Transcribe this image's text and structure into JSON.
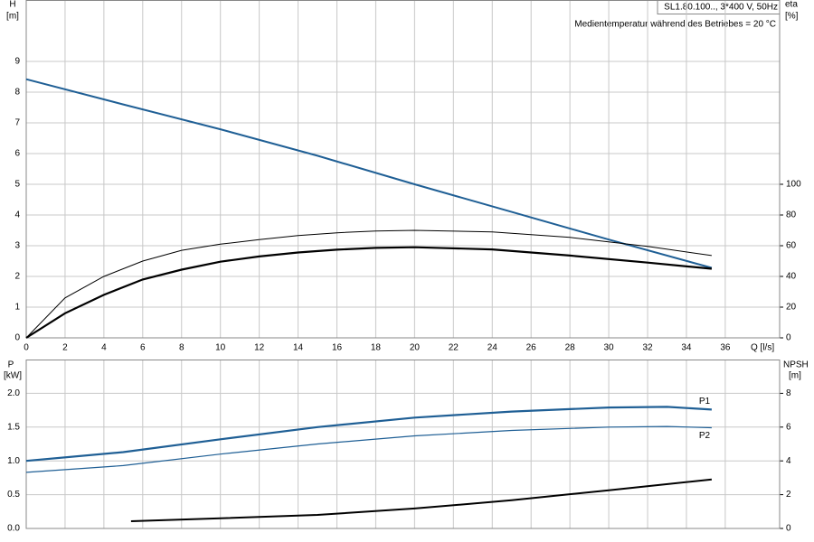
{
  "chart_data": [
    {
      "type": "line",
      "title": "SL1.80.100.., 3*400 V, 50Hz",
      "subtitle": "Medientemperatur während des Betriebes = 20 °C",
      "xlabel": "Q [l/s]",
      "ylabel": "H",
      "yunit": "[m]",
      "y2label": "eta",
      "y2unit": "[%]",
      "xlim": [
        0,
        38.8
      ],
      "xticks": [
        0,
        2,
        4,
        6,
        8,
        10,
        12,
        14,
        16,
        18,
        20,
        22,
        24,
        26,
        28,
        30,
        32,
        34,
        36
      ],
      "ylim": [
        0,
        11
      ],
      "yticks": [
        0,
        1,
        2,
        3,
        4,
        5,
        6,
        7,
        8,
        9
      ],
      "y2lim": [
        0,
        220
      ],
      "y2ticks": [
        0,
        20,
        40,
        60,
        80,
        100
      ],
      "grid": true,
      "series": [
        {
          "color": "#1f5f95",
          "axis": "y",
          "x": [
            0,
            5,
            10,
            15,
            20,
            25,
            30,
            35.3
          ],
          "values": [
            8.42,
            7.6,
            6.79,
            5.93,
            5.0,
            4.1,
            3.2,
            2.28
          ]
        },
        {
          "color": "#000000",
          "axis": "y2",
          "x": [
            0,
            2,
            4,
            6,
            8,
            10,
            12,
            14,
            16,
            18,
            20,
            24,
            28,
            32,
            35.3
          ],
          "values": [
            0,
            26,
            40,
            50,
            57,
            61,
            64,
            66.6,
            68.4,
            69.6,
            70,
            69,
            65.4,
            59.6,
            53.6
          ]
        },
        {
          "color": "#000000",
          "axis": "y2",
          "x": [
            0,
            2,
            4,
            6,
            8,
            10,
            12,
            14,
            16,
            18,
            20,
            24,
            28,
            32,
            35.3
          ],
          "values": [
            0,
            16,
            28,
            38,
            44.4,
            49.6,
            53,
            55.6,
            57.4,
            58.6,
            59,
            57.6,
            53.6,
            49,
            45
          ]
        }
      ]
    },
    {
      "type": "line",
      "ylabel": "P",
      "yunit": "[kW]",
      "y2label": "NPSH",
      "y2unit": "[m]",
      "xlim": [
        0,
        38.8
      ],
      "ylim": [
        0,
        2.5
      ],
      "yticks": [
        {
          "value": 0,
          "label": "0.0"
        },
        0.5,
        {
          "value": 1,
          "label": "1.0"
        },
        1.5,
        {
          "value": 2,
          "label": "2.0"
        }
      ],
      "y2lim": [
        0,
        10
      ],
      "y2ticks": [
        0,
        2,
        4,
        6,
        8
      ],
      "grid": true,
      "series": [
        {
          "name": "P1",
          "color": "#1f5f95",
          "axis": "y",
          "x": [
            0,
            5,
            10,
            15,
            20,
            25,
            30,
            33,
            35.3
          ],
          "values": [
            1.0,
            1.13,
            1.32,
            1.5,
            1.64,
            1.73,
            1.79,
            1.8,
            1.76
          ]
        },
        {
          "name": "P2",
          "color": "#1f5f95",
          "axis": "y",
          "x": [
            0,
            5,
            10,
            15,
            20,
            25,
            30,
            33,
            35.3
          ],
          "values": [
            0.83,
            0.93,
            1.1,
            1.25,
            1.37,
            1.45,
            1.5,
            1.51,
            1.49
          ]
        },
        {
          "color": "#000000",
          "axis": "y2",
          "x": [
            5.4,
            10,
            15,
            20,
            25,
            30,
            35.3
          ],
          "values": [
            0.43,
            0.6,
            0.8,
            1.18,
            1.67,
            2.26,
            2.9
          ]
        }
      ]
    }
  ]
}
